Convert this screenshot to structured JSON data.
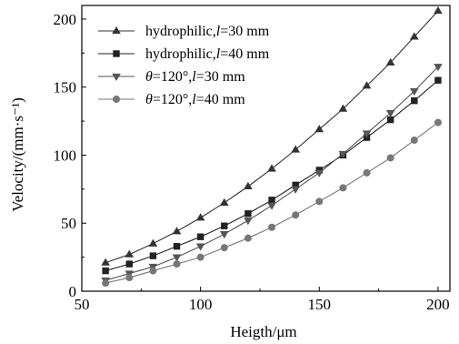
{
  "chart_data": {
    "type": "line",
    "xlabel": "Heigth/μm",
    "ylabel": "Velocity/(mm·s⁻¹)",
    "xlim": [
      50,
      205
    ],
    "ylim": [
      0,
      210
    ],
    "xticks": [
      50,
      100,
      150,
      200
    ],
    "yticks": [
      0,
      50,
      100,
      150,
      200
    ],
    "grid": false,
    "legend_position": "top-left",
    "x": [
      60,
      70,
      80,
      90,
      100,
      110,
      120,
      130,
      140,
      150,
      160,
      170,
      180,
      190,
      200
    ],
    "series": [
      {
        "name": "hydrophilic,l=30 mm",
        "legend_parts": [
          "hydrophilic,",
          "l",
          "=30 mm"
        ],
        "marker": "triangle-up",
        "color": "#333333",
        "values": [
          21,
          27,
          35,
          44,
          54,
          65,
          77,
          90,
          104,
          119,
          134,
          151,
          168,
          187,
          206
        ]
      },
      {
        "name": "hydrophilic,l=40 mm",
        "legend_parts": [
          "hydrophilic,",
          "l",
          "=40 mm"
        ],
        "marker": "square",
        "color": "#222222",
        "values": [
          15,
          20,
          26,
          33,
          40,
          48,
          57,
          67,
          78,
          89,
          100,
          113,
          126,
          140,
          155
        ]
      },
      {
        "name": "θ=120°,l=30 mm",
        "legend_parts": [
          "θ",
          "=120°,",
          "l",
          "=30 mm"
        ],
        "marker": "triangle-down",
        "color": "#555555",
        "values": [
          8,
          13,
          18,
          25,
          33,
          42,
          52,
          63,
          75,
          87,
          101,
          116,
          131,
          147,
          165
        ]
      },
      {
        "name": "θ=120°,l=40 mm",
        "legend_parts": [
          "θ",
          "=120°,",
          "l",
          "=40 mm"
        ],
        "marker": "circle",
        "color": "#777777",
        "values": [
          6,
          10,
          15,
          20,
          25,
          32,
          39,
          47,
          56,
          66,
          76,
          87,
          98,
          111,
          124
        ]
      }
    ]
  }
}
